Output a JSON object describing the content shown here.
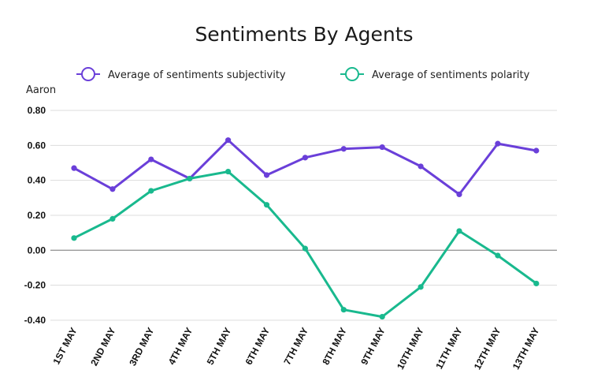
{
  "chart_data": {
    "type": "line",
    "title": "Sentiments By Agents",
    "panel_label": "Aaron",
    "xlabel": "",
    "ylabel": "",
    "ylim": [
      -0.4,
      0.8
    ],
    "y_ticks": [
      "0.80",
      "0.60",
      "0.40",
      "0.20",
      "0.00",
      "-0.20",
      "-0.40"
    ],
    "y_tick_values": [
      0.8,
      0.6,
      0.4,
      0.2,
      0.0,
      -0.2,
      -0.4
    ],
    "categories": [
      "1ST MAY",
      "2ND MAY",
      "3RD MAY",
      "4TH MAY",
      "5TH MAY",
      "6TH MAY",
      "7TH MAY",
      "8TH MAY",
      "9TH MAY",
      "10TH MAY",
      "11TH MAY",
      "12TH MAY",
      "13TH MAY"
    ],
    "grid": true,
    "legend_position": "top",
    "series": [
      {
        "name": "Average of sentiments subjectivity",
        "color": "#6a3fd9",
        "values": [
          0.47,
          0.35,
          0.52,
          0.41,
          0.63,
          0.43,
          0.53,
          0.58,
          0.59,
          0.48,
          0.32,
          0.61,
          0.57
        ]
      },
      {
        "name": "Average of sentiments polarity",
        "color": "#19b98e",
        "values": [
          0.07,
          0.18,
          0.34,
          0.41,
          0.45,
          0.26,
          0.01,
          -0.34,
          -0.38,
          -0.21,
          0.11,
          -0.03,
          -0.19
        ]
      }
    ]
  }
}
